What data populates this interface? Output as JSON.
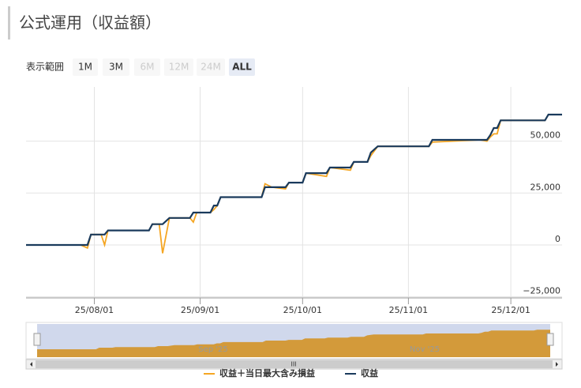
{
  "header": {
    "title": "公式運用（収益額）"
  },
  "range_selector": {
    "label": "表示範囲",
    "buttons": [
      {
        "label": "1M",
        "state": "enabled"
      },
      {
        "label": "3M",
        "state": "enabled"
      },
      {
        "label": "6M",
        "state": "disabled"
      },
      {
        "label": "12M",
        "state": "disabled"
      },
      {
        "label": "24M",
        "state": "disabled"
      },
      {
        "label": "ALL",
        "state": "selected"
      }
    ]
  },
  "chart_data": {
    "type": "line",
    "x": [
      "25/07/12",
      "25/07/28",
      "25/07/30",
      "25/07/31",
      "25/08/03",
      "25/08/04",
      "25/08/05",
      "25/08/17",
      "25/08/18",
      "25/08/20",
      "25/08/21",
      "25/08/23",
      "25/08/29",
      "25/08/30",
      "25/08/31",
      "25/09/04",
      "25/09/05",
      "25/09/06",
      "25/09/07",
      "25/09/19",
      "25/09/20",
      "25/09/22",
      "25/09/26",
      "25/09/27",
      "25/10/01",
      "25/10/02",
      "25/10/08",
      "25/10/09",
      "25/10/15",
      "25/10/16",
      "25/10/20",
      "25/10/21",
      "25/10/23",
      "25/11/07",
      "25/11/08",
      "25/11/22",
      "25/11/24",
      "25/11/25",
      "25/11/26",
      "25/11/27",
      "25/11/28",
      "25/12/11",
      "25/12/12",
      "25/12/16"
    ],
    "series": [
      {
        "name": "収益＋当日最大含み損益",
        "color": "#f5a623",
        "values": [
          0,
          0,
          -1500,
          5000,
          5000,
          0,
          7000,
          7000,
          10000,
          10000,
          -4000,
          13000,
          13000,
          11000,
          15600,
          15600,
          17000,
          19000,
          23000,
          23000,
          29500,
          27800,
          27000,
          30000,
          30000,
          34600,
          33000,
          37300,
          36000,
          40000,
          40000,
          43000,
          47500,
          47500,
          49500,
          50600,
          50000,
          52000,
          53500,
          53500,
          60000,
          60000,
          62800,
          62800
        ]
      },
      {
        "name": "収益",
        "color": "#1a3a5c",
        "values": [
          0,
          0,
          0,
          5000,
          5000,
          5000,
          7000,
          7000,
          10000,
          10000,
          10000,
          13000,
          13000,
          15600,
          15600,
          15600,
          19000,
          19000,
          23000,
          23000,
          27800,
          27800,
          27800,
          30000,
          30000,
          34600,
          34600,
          37300,
          37300,
          40000,
          40000,
          44500,
          47500,
          47500,
          50600,
          50600,
          50600,
          53000,
          56300,
          56300,
          60000,
          60000,
          62800,
          62800
        ]
      }
    ],
    "xlim": [
      "25/07/12",
      "25/12/16"
    ],
    "xticks": [
      "25/08/01",
      "25/09/01",
      "25/10/01",
      "25/11/01",
      "25/12/01"
    ],
    "ylim": [
      -25500,
      76100
    ],
    "yticks": [
      {
        "value": -25000,
        "label": "−25,000"
      },
      0,
      {
        "value": 25000,
        "label": "25,000"
      },
      {
        "value": 50000,
        "label": "50,000"
      }
    ],
    "grid": true,
    "navigator": {
      "labels": [
        "Sep '25",
        "Nov '25"
      ],
      "color": "#d39a3a"
    }
  }
}
